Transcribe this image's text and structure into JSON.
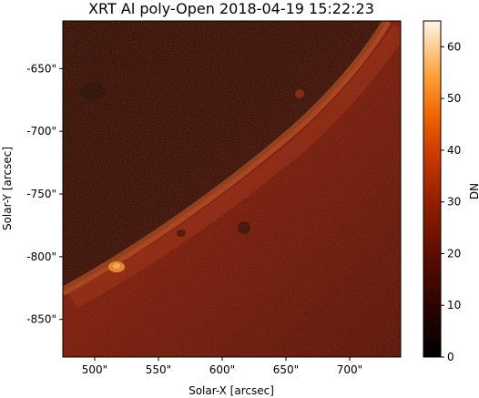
{
  "title": "XRT Al poly-Open 2018-04-19 15:22:23",
  "xlabel": "Solar-X [arcsec]",
  "ylabel": "Solar-Y [arcsec]",
  "x_ticks": [
    "500\"",
    "550\"",
    "600\"",
    "650\"",
    "700\""
  ],
  "y_ticks": [
    "-650\"",
    "-700\"",
    "-750\"",
    "-800\"",
    "-850\""
  ],
  "colorbar": {
    "label": "DN",
    "ticks": [
      "0",
      "10",
      "20",
      "30",
      "40",
      "50",
      "60"
    ],
    "range": [
      0,
      65
    ],
    "colormap": "hinodexrt (black-red-orange-white)"
  },
  "image": {
    "x_range_arcsec": [
      475,
      740
    ],
    "y_range_arcsec": [
      -880,
      -612
    ],
    "x_tick_values": [
      500,
      550,
      600,
      650,
      700
    ],
    "y_tick_values": [
      -650,
      -700,
      -750,
      -800,
      -850
    ],
    "colorbar_tick_values": [
      0,
      10,
      20,
      30,
      40,
      50,
      60
    ],
    "content": "Solar limb: bright disk lower-right, dark off-limb corona upper-left"
  }
}
